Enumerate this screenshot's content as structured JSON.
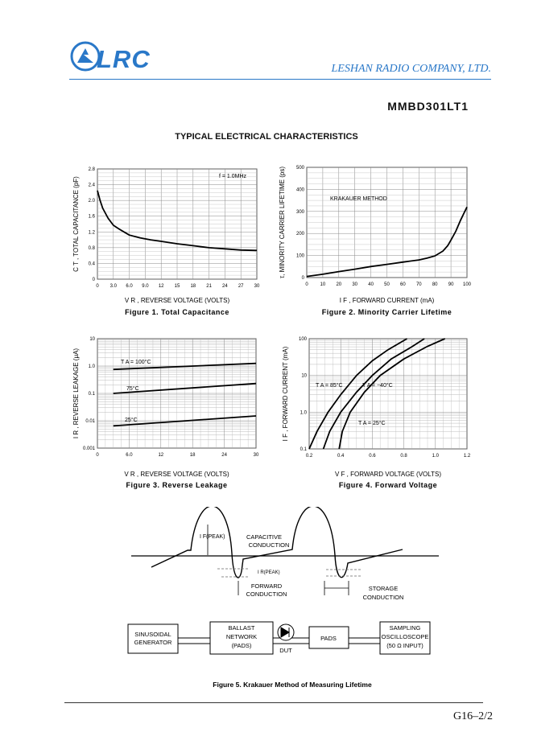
{
  "header": {
    "logo_text": "LRC",
    "company": "LESHAN RADIO COMPANY, LTD.",
    "part_number": "MMBD301LT1",
    "section_title": "TYPICAL ELECTRICAL CHARACTERISTICS"
  },
  "chart_data": [
    {
      "id": "fig1",
      "type": "line",
      "caption": "Figure 1. Total Capacitance",
      "ylabel": "C T , TOTAL CAPACITANCE (pF)",
      "xlabel": "V R , REVERSE VOLTAGE (VOLTS)",
      "annotation": "f = 1.0MHz",
      "xlim": [
        0,
        30
      ],
      "ylim": [
        0,
        2.8
      ],
      "xticks": [
        "0",
        "3.0",
        "6.0",
        "9.0",
        "12",
        "15",
        "18",
        "21",
        "24",
        "27",
        "30"
      ],
      "yticks": [
        "0",
        "0.4",
        "0.8",
        "1.2",
        "1.6",
        "2.0",
        "2.4",
        "2.8"
      ],
      "grid": true,
      "series": [
        {
          "x": [
            0,
            0.5,
            1,
            2,
            3,
            4,
            5,
            6,
            8,
            10,
            12,
            15,
            18,
            21,
            24,
            27,
            30
          ],
          "y": [
            2.25,
            2.0,
            1.8,
            1.55,
            1.37,
            1.28,
            1.2,
            1.12,
            1.05,
            1.0,
            0.96,
            0.9,
            0.85,
            0.8,
            0.77,
            0.74,
            0.73
          ]
        }
      ]
    },
    {
      "id": "fig2",
      "type": "line",
      "caption": "Figure 2. Minority Carrier Lifetime",
      "ylabel": "τ, MINORITY CARRIER LIFETIME (ps)",
      "xlabel": "I F , FORWARD CURRENT (mA)",
      "annotation": "KRAKAUER METHOD",
      "xlim": [
        0,
        100
      ],
      "ylim": [
        0,
        500
      ],
      "xticks": [
        "0",
        "10",
        "20",
        "30",
        "40",
        "50",
        "60",
        "70",
        "80",
        "90",
        "100"
      ],
      "yticks": [
        "0",
        "100",
        "200",
        "300",
        "400",
        "500"
      ],
      "grid": true,
      "series": [
        {
          "x": [
            0,
            10,
            20,
            30,
            40,
            50,
            60,
            70,
            75,
            80,
            85,
            88,
            90,
            93,
            96,
            98,
            100
          ],
          "y": [
            5,
            15,
            27,
            38,
            50,
            60,
            70,
            80,
            88,
            98,
            120,
            145,
            170,
            210,
            260,
            290,
            320
          ]
        }
      ]
    },
    {
      "id": "fig3",
      "type": "line",
      "caption": "Figure 3. Reverse Leakage",
      "ylabel": "I R , REVERSE LEAKAGE (μA)",
      "xlabel": "V R , REVERSE VOLTAGE (VOLTS)",
      "xlim": [
        0,
        30
      ],
      "ylim": [
        0.001,
        10
      ],
      "yscale": "log",
      "xticks": [
        "0",
        "6.0",
        "12",
        "18",
        "24",
        "30"
      ],
      "yticks": [
        "0.001",
        "0.01",
        "0.1",
        "1.0",
        "10"
      ],
      "grid": true,
      "series": [
        {
          "name": "T A = 100°C",
          "x": [
            3,
            30
          ],
          "y": [
            0.75,
            1.25
          ]
        },
        {
          "name": "75°C",
          "x": [
            3,
            30
          ],
          "y": [
            0.1,
            0.23
          ]
        },
        {
          "name": "25°C",
          "x": [
            3,
            30
          ],
          "y": [
            0.0065,
            0.015
          ]
        }
      ]
    },
    {
      "id": "fig4",
      "type": "line",
      "caption": "Figure 4. Forward Voltage",
      "ylabel": "I F , FORWARD CURRENT (mA)",
      "xlabel": "V F , FORWARD VOLTAGE (VOLTS)",
      "xlim": [
        0.2,
        1.2
      ],
      "ylim": [
        0.1,
        100
      ],
      "yscale": "log",
      "xticks": [
        "0.2",
        "0.4",
        "0.6",
        "0.8",
        "1.0",
        "1.2"
      ],
      "yticks": [
        "0.1",
        "1.0",
        "10",
        "100"
      ],
      "grid": true,
      "series": [
        {
          "name": "T A = 85°C",
          "x": [
            0.2,
            0.25,
            0.32,
            0.4,
            0.5,
            0.6,
            0.7,
            0.82
          ],
          "y": [
            0.1,
            0.3,
            1.0,
            3.0,
            10,
            25,
            50,
            100
          ]
        },
        {
          "name": "T A = 25°C",
          "x": [
            0.29,
            0.33,
            0.4,
            0.5,
            0.6,
            0.72,
            0.85,
            0.93
          ],
          "y": [
            0.1,
            0.3,
            1.0,
            3.5,
            10,
            28,
            60,
            100
          ]
        },
        {
          "name": "T A = −40°C",
          "x": [
            0.39,
            0.41,
            0.46,
            0.55,
            0.65,
            0.8,
            0.95,
            1.06
          ],
          "y": [
            0.1,
            0.3,
            1.0,
            3.5,
            10,
            28,
            62,
            100
          ]
        }
      ]
    }
  ],
  "fig5": {
    "label_ifreak": "I F(PEAK)",
    "label_irpeak": "I R(PEAK)",
    "capacitive": "CAPACITIVE",
    "conduction1": "CONDUCTION",
    "forward": "FORWARD",
    "conduction2": "CONDUCTION",
    "storage": "STORAGE",
    "conduction3": "CONDUCTION",
    "box1": [
      "SINUSOIDAL",
      "GENERATOR"
    ],
    "box2": [
      "BALLAST",
      "NETWORK",
      "(PADS)"
    ],
    "dut": "DUT",
    "box3": "PADS",
    "box4": [
      "SAMPLING",
      "OSCILLOSCOPE",
      "(50 Ω INPUT)"
    ],
    "caption": "Figure 5. Krakauer Method of Measuring Lifetime"
  },
  "footer": {
    "page": "G16–2/2"
  }
}
